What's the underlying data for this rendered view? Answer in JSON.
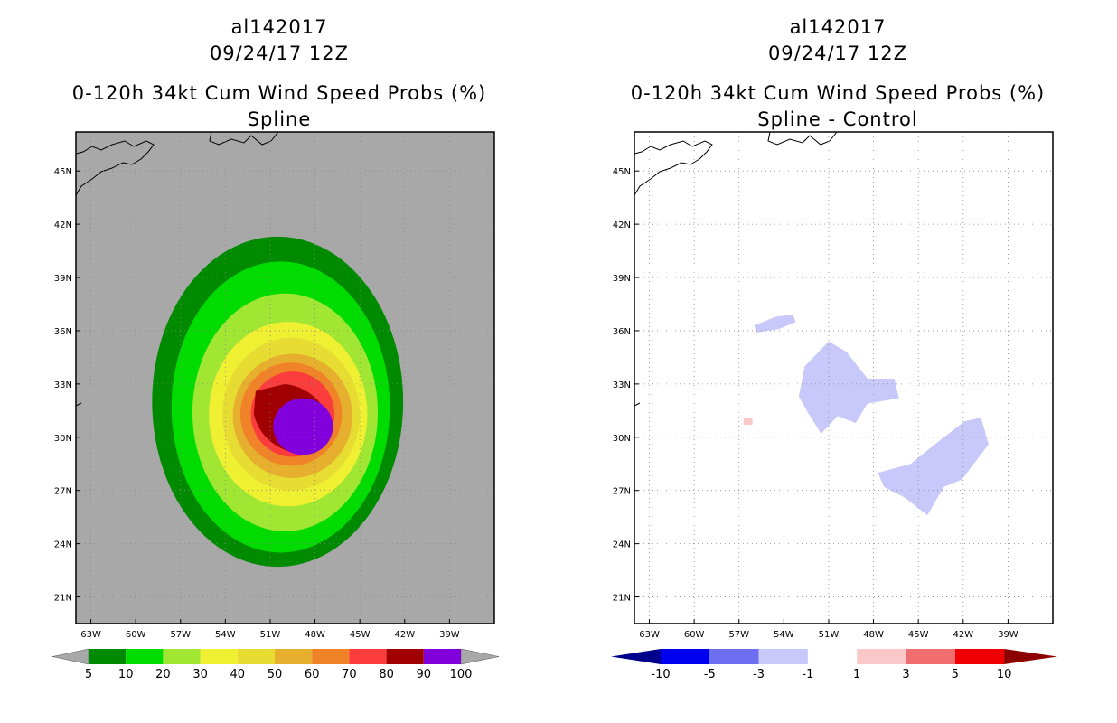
{
  "left_panel": {
    "storm_id": "al142017",
    "datetime": "09/24/17 12Z",
    "product": "0-120h 34kt Cum Wind Speed Probs (%)",
    "subtitle": "Spline"
  },
  "right_panel": {
    "storm_id": "al142017",
    "datetime": "09/24/17 12Z",
    "product": "0-120h 34kt Cum Wind Speed Probs (%)",
    "subtitle": "Spline - Control"
  },
  "chart_data": [
    {
      "type": "heatmap",
      "title": "0-120h 34kt Cum Wind Speed Probs (%) — Spline",
      "x_ticks": [
        "63W",
        "60W",
        "57W",
        "54W",
        "51W",
        "48W",
        "45W",
        "42W",
        "39W"
      ],
      "y_ticks": [
        "45N",
        "42N",
        "39N",
        "36N",
        "33N",
        "30N",
        "27N",
        "24N",
        "21N"
      ],
      "xlim_deg_west": [
        64,
        36
      ],
      "ylim_deg_north": [
        19.5,
        47.2
      ],
      "background_color": "#a8a8a8",
      "colorbar": {
        "labels": [
          "5",
          "10",
          "20",
          "30",
          "40",
          "50",
          "60",
          "70",
          "80",
          "90",
          "100"
        ],
        "colors": [
          "#008a00",
          "#00dc00",
          "#a0e632",
          "#f0f032",
          "#e6dc32",
          "#e6af2d",
          "#f08228",
          "#fa3c3c",
          "#a00000",
          "#8200dc"
        ]
      },
      "contours": [
        {
          "threshold": 5,
          "color": "#008a00",
          "center_lon": -50.5,
          "center_lat": 32.0,
          "lon_radius": 8.4,
          "lat_radius": 9.3
        },
        {
          "threshold": 10,
          "color": "#00dc00",
          "center_lon": -50.3,
          "center_lat": 31.7,
          "lon_radius": 7.3,
          "lat_radius": 8.2
        },
        {
          "threshold": 20,
          "color": "#a0e632",
          "center_lon": -50.0,
          "center_lat": 31.4,
          "lon_radius": 6.2,
          "lat_radius": 6.7
        },
        {
          "threshold": 30,
          "color": "#f0f032",
          "center_lon": -49.8,
          "center_lat": 31.3,
          "lon_radius": 5.3,
          "lat_radius": 5.2
        },
        {
          "threshold": 40,
          "color": "#e6dc32",
          "center_lon": -49.6,
          "center_lat": 31.3,
          "lon_radius": 4.6,
          "lat_radius": 4.3
        },
        {
          "threshold": 50,
          "color": "#e6af2d",
          "center_lon": -49.5,
          "center_lat": 31.2,
          "lon_radius": 4.0,
          "lat_radius": 3.5
        },
        {
          "threshold": 60,
          "color": "#f08228",
          "center_lon": -49.6,
          "center_lat": 31.3,
          "lon_radius": 3.4,
          "lat_radius": 2.9
        },
        {
          "threshold": 70,
          "color": "#fa3c3c",
          "center_lon": -49.5,
          "center_lat": 31.3,
          "lon_radius": 2.8,
          "lat_radius": 2.4
        },
        {
          "threshold": 80,
          "color": "#a00000",
          "center_lon": -49.5,
          "center_lat": 31.1,
          "lon_radius": 2.6,
          "lat_radius": 2.0
        },
        {
          "threshold": 90,
          "color": "#8200dc",
          "center_lon": -48.8,
          "center_lat": 30.6,
          "lon_radius": 2.0,
          "lat_radius": 1.6
        }
      ]
    },
    {
      "type": "heatmap",
      "title": "0-120h 34kt Cum Wind Speed Probs (%) — Spline - Control",
      "x_ticks": [
        "63W",
        "60W",
        "57W",
        "54W",
        "51W",
        "48W",
        "45W",
        "42W",
        "39W"
      ],
      "y_ticks": [
        "45N",
        "42N",
        "39N",
        "36N",
        "33N",
        "30N",
        "27N",
        "24N",
        "21N"
      ],
      "xlim_deg_west": [
        64,
        36
      ],
      "ylim_deg_north": [
        19.5,
        47.2
      ],
      "background_color": "#ffffff",
      "colorbar": {
        "labels": [
          "-10",
          "-5",
          "-3",
          "-1",
          "1",
          "3",
          "5",
          "10"
        ],
        "colors": [
          "#00008c",
          "#0000f0",
          "#6e6ef0",
          "#c8c8fa",
          "#ffffff",
          "#fac8c8",
          "#f06e6e",
          "#f00000",
          "#8c0000"
        ]
      },
      "difference_regions": [
        {
          "range": "-3 to -1",
          "color": "#c8c8fa",
          "area": "central blob",
          "center_lon": -50.0,
          "center_lat": 32.8
        },
        {
          "range": "-3 to -1",
          "color": "#c8c8fa",
          "area": "southeast band",
          "center_lon": -44.5,
          "center_lat": 28.8
        },
        {
          "range": "-3 to -1",
          "color": "#c8c8fa",
          "area": "north patch",
          "center_lon": -55.0,
          "center_lat": 36.4
        },
        {
          "range": "1 to 3",
          "color": "#fac8c8",
          "area": "small patch",
          "center_lon": -56.4,
          "center_lat": 30.9
        }
      ]
    }
  ]
}
